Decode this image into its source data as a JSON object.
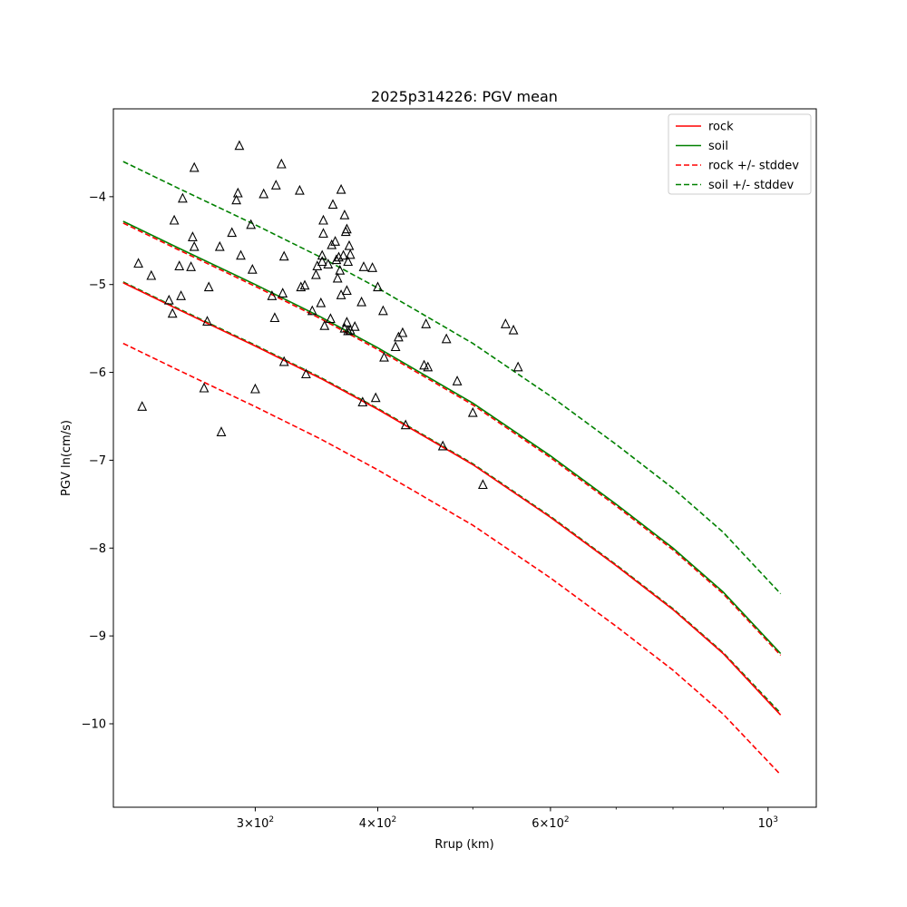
{
  "chart_data": {
    "type": "scatter",
    "title": "2025p314226: PGV mean",
    "xlabel": "Rrup (km)",
    "ylabel": "PGV ln(cm/s)",
    "xscale": "log",
    "xlim": [
      215,
      1120
    ],
    "ylim": [
      -10.95,
      -3.0
    ],
    "grid": false,
    "legend_position": "top-right",
    "x_major_ticks": [
      {
        "value": 300,
        "base": "3",
        "exp": "2"
      },
      {
        "value": 400,
        "base": "4",
        "exp": "2"
      },
      {
        "value": 600,
        "base": "6",
        "exp": "2"
      },
      {
        "value": 1000,
        "base": "10",
        "exp": "3"
      }
    ],
    "x_minor_ticks": [
      500,
      700,
      800,
      900
    ],
    "y_ticks": [
      {
        "value": -4,
        "label": "−4"
      },
      {
        "value": -5,
        "label": "−5"
      },
      {
        "value": -6,
        "label": "−6"
      },
      {
        "value": -7,
        "label": "−7"
      },
      {
        "value": -8,
        "label": "−8"
      },
      {
        "value": -9,
        "label": "−9"
      },
      {
        "value": -10,
        "label": "−10"
      }
    ],
    "series": [
      {
        "name": "rock",
        "color": "#ff0000",
        "style": "solid",
        "x": [
          220,
          250,
          300,
          350,
          400,
          500,
          600,
          700,
          800,
          900,
          1030
        ],
        "values": [
          -4.98,
          -5.28,
          -5.7,
          -6.07,
          -6.42,
          -7.05,
          -7.65,
          -8.2,
          -8.7,
          -9.2,
          -9.9
        ]
      },
      {
        "name": "soil",
        "color": "#008000",
        "style": "solid",
        "x": [
          220,
          250,
          300,
          350,
          400,
          500,
          600,
          700,
          800,
          900,
          1030
        ],
        "values": [
          -4.28,
          -4.58,
          -5.0,
          -5.37,
          -5.72,
          -6.35,
          -6.95,
          -7.5,
          -8.0,
          -8.5,
          -9.2
        ]
      },
      {
        "name": "rock +/- stddev",
        "color": "#ff0000",
        "style": "dashed",
        "lines": [
          {
            "x": [
              220,
              250,
              300,
              350,
              400,
              500,
              600,
              700,
              800,
              900,
              1030
            ],
            "values": [
              -4.3,
              -4.6,
              -5.02,
              -5.39,
              -5.74,
              -6.37,
              -6.97,
              -7.52,
              -8.02,
              -8.52,
              -9.22
            ]
          },
          {
            "x": [
              220,
              250,
              300,
              350,
              400,
              500,
              600,
              700,
              800,
              900,
              1030
            ],
            "values": [
              -5.67,
              -5.97,
              -6.39,
              -6.76,
              -7.11,
              -7.74,
              -8.34,
              -8.89,
              -9.39,
              -9.89,
              -10.58
            ]
          }
        ]
      },
      {
        "name": "soil +/- stddev",
        "color": "#008000",
        "style": "dashed",
        "lines": [
          {
            "x": [
              220,
              250,
              300,
              350,
              400,
              500,
              600,
              700,
              800,
              900,
              1030
            ],
            "values": [
              -3.6,
              -3.9,
              -4.32,
              -4.69,
              -5.04,
              -5.67,
              -6.27,
              -6.82,
              -7.32,
              -7.82,
              -8.52
            ]
          },
          {
            "x": [
              220,
              250,
              300,
              350,
              400,
              500,
              600,
              700,
              800,
              900,
              1030
            ],
            "values": [
              -4.97,
              -5.27,
              -5.69,
              -6.06,
              -6.41,
              -7.04,
              -7.64,
              -8.19,
              -8.69,
              -9.19,
              -9.88
            ]
          }
        ]
      }
    ],
    "observations": {
      "marker": "triangle",
      "points": [
        [
          228,
          -4.76
        ],
        [
          230,
          -6.39
        ],
        [
          235,
          -4.9
        ],
        [
          245,
          -5.18
        ],
        [
          247,
          -5.33
        ],
        [
          248,
          -4.27
        ],
        [
          251,
          -4.79
        ],
        [
          252,
          -5.13
        ],
        [
          253,
          -4.02
        ],
        [
          258,
          -4.8
        ],
        [
          259,
          -4.46
        ],
        [
          260,
          -3.67
        ],
        [
          260,
          -4.57
        ],
        [
          266,
          -6.18
        ],
        [
          268,
          -5.42
        ],
        [
          269,
          -5.03
        ],
        [
          276,
          -4.57
        ],
        [
          277,
          -6.68
        ],
        [
          284,
          -4.41
        ],
        [
          287,
          -4.04
        ],
        [
          288,
          -3.96
        ],
        [
          289,
          -3.42
        ],
        [
          290,
          -4.67
        ],
        [
          297,
          -4.32
        ],
        [
          298,
          -4.83
        ],
        [
          300,
          -6.19
        ],
        [
          306,
          -3.97
        ],
        [
          312,
          -5.13
        ],
        [
          314,
          -5.38
        ],
        [
          315,
          -3.87
        ],
        [
          319,
          -3.63
        ],
        [
          320,
          -5.1
        ],
        [
          321,
          -4.68
        ],
        [
          321,
          -5.88
        ],
        [
          333,
          -3.93
        ],
        [
          334,
          -5.03
        ],
        [
          337,
          -5.01
        ],
        [
          338,
          -6.02
        ],
        [
          343,
          -5.3
        ],
        [
          346,
          -4.89
        ],
        [
          347,
          -4.79
        ],
        [
          350,
          -5.21
        ],
        [
          351,
          -4.67
        ],
        [
          351,
          -4.74
        ],
        [
          352,
          -4.42
        ],
        [
          352,
          -4.27
        ],
        [
          353,
          -5.47
        ],
        [
          356,
          -4.77
        ],
        [
          358,
          -5.39
        ],
        [
          359,
          -4.55
        ],
        [
          360,
          -4.09
        ],
        [
          362,
          -4.51
        ],
        [
          363,
          -4.72
        ],
        [
          364,
          -4.93
        ],
        [
          365,
          -4.69
        ],
        [
          366,
          -4.84
        ],
        [
          367,
          -3.92
        ],
        [
          367,
          -5.12
        ],
        [
          369,
          -4.67
        ],
        [
          370,
          -4.21
        ],
        [
          370,
          -5.5
        ],
        [
          371,
          -4.4
        ],
        [
          372,
          -4.37
        ],
        [
          372,
          -5.07
        ],
        [
          372,
          -5.43
        ],
        [
          373,
          -4.74
        ],
        [
          373,
          -5.53
        ],
        [
          374,
          -4.56
        ],
        [
          375,
          -4.66
        ],
        [
          375,
          -5.52
        ],
        [
          379,
          -5.48
        ],
        [
          385,
          -5.2
        ],
        [
          386,
          -6.34
        ],
        [
          387,
          -4.8
        ],
        [
          395,
          -4.81
        ],
        [
          398,
          -6.29
        ],
        [
          400,
          -5.03
        ],
        [
          405,
          -5.3
        ],
        [
          406,
          -5.83
        ],
        [
          417,
          -5.71
        ],
        [
          420,
          -5.6
        ],
        [
          424,
          -5.55
        ],
        [
          427,
          -6.6
        ],
        [
          446,
          -5.92
        ],
        [
          448,
          -5.45
        ],
        [
          450,
          -5.94
        ],
        [
          466,
          -6.84
        ],
        [
          470,
          -5.62
        ],
        [
          482,
          -6.1
        ],
        [
          500,
          -6.46
        ],
        [
          512,
          -7.28
        ],
        [
          540,
          -5.45
        ],
        [
          550,
          -5.52
        ],
        [
          556,
          -5.94
        ]
      ]
    }
  }
}
